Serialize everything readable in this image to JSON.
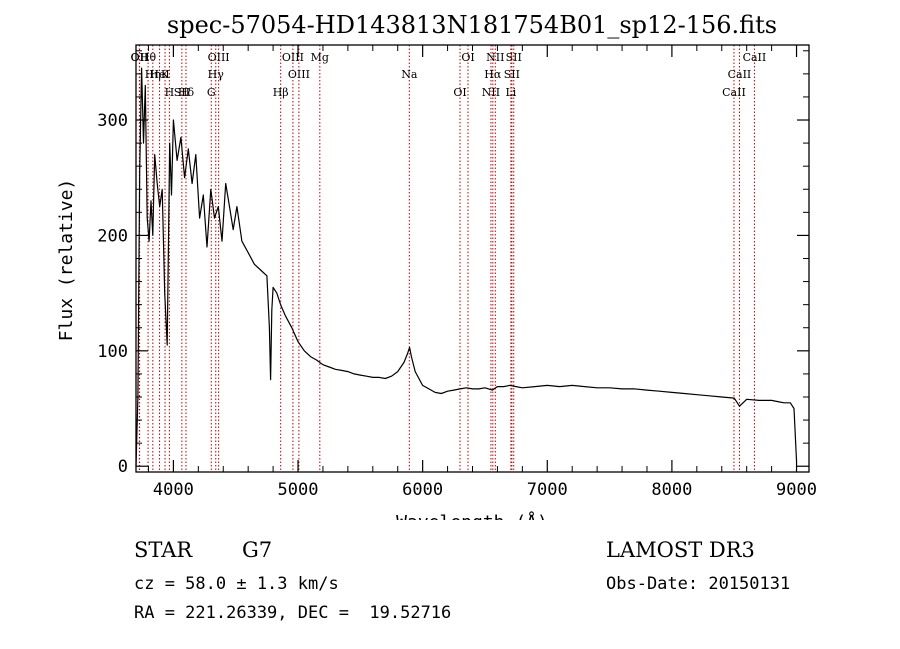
{
  "chart_data": {
    "type": "line",
    "title": "spec-57054-HD143813N181754B01_sp12-156.fits",
    "xlabel": "Wavelength (Å)",
    "ylabel": "Flux (relative)",
    "xlim": [
      3700,
      9100
    ],
    "ylim": [
      -5,
      365
    ],
    "xticks": [
      4000,
      5000,
      6000,
      7000,
      8000,
      9000
    ],
    "yticks": [
      0,
      100,
      200,
      300
    ],
    "series": [
      {
        "name": "flux",
        "x": [
          3700,
          3715,
          3730,
          3745,
          3760,
          3775,
          3790,
          3805,
          3820,
          3835,
          3850,
          3870,
          3890,
          3910,
          3930,
          3950,
          3970,
          3985,
          4000,
          4030,
          4060,
          4090,
          4120,
          4150,
          4180,
          4210,
          4240,
          4270,
          4300,
          4330,
          4360,
          4390,
          4420,
          4450,
          4480,
          4510,
          4550,
          4600,
          4650,
          4700,
          4750,
          4770,
          4780,
          4790,
          4800,
          4830,
          4860,
          4900,
          4950,
          5000,
          5050,
          5100,
          5150,
          5200,
          5250,
          5300,
          5350,
          5400,
          5450,
          5500,
          5550,
          5600,
          5650,
          5700,
          5750,
          5800,
          5850,
          5880,
          5895,
          5910,
          5940,
          6000,
          6050,
          6100,
          6150,
          6200,
          6250,
          6300,
          6350,
          6400,
          6450,
          6500,
          6560,
          6600,
          6650,
          6700,
          6750,
          6800,
          6900,
          7000,
          7100,
          7200,
          7300,
          7400,
          7500,
          7600,
          7700,
          7800,
          7900,
          8000,
          8100,
          8200,
          8300,
          8400,
          8500,
          8542,
          8600,
          8700,
          8800,
          8850,
          8900,
          8950,
          8980,
          9000
        ],
        "values": [
          0,
          60,
          255,
          345,
          280,
          330,
          215,
          195,
          230,
          200,
          270,
          245,
          225,
          240,
          150,
          105,
          280,
          235,
          300,
          265,
          285,
          250,
          275,
          245,
          270,
          215,
          235,
          190,
          240,
          215,
          225,
          195,
          245,
          225,
          205,
          225,
          195,
          185,
          175,
          170,
          165,
          120,
          75,
          135,
          155,
          150,
          140,
          130,
          120,
          108,
          100,
          95,
          92,
          88,
          86,
          84,
          83,
          82,
          80,
          79,
          78,
          77,
          77,
          76,
          78,
          82,
          90,
          98,
          103,
          95,
          82,
          70,
          67,
          64,
          63,
          65,
          66,
          67,
          68,
          67,
          67,
          68,
          66,
          69,
          69,
          70,
          69,
          68,
          69,
          70,
          69,
          70,
          69,
          68,
          68,
          67,
          67,
          66,
          65,
          64,
          63,
          62,
          61,
          60,
          59,
          52,
          58,
          57,
          57,
          56,
          55,
          55,
          50,
          5
        ]
      }
    ],
    "lines": [
      {
        "name": "Hθ",
        "w": 3797
      },
      {
        "name": "K",
        "w": 3933
      },
      {
        "name": "Hδ",
        "w": 4101
      },
      {
        "name": "OII",
        "w": 3727
      },
      {
        "name": "HeI",
        "w": 3889
      },
      {
        "name": "SII",
        "w": 4068
      },
      {
        "name": "OII",
        "w": 3729
      },
      {
        "name": "Hη",
        "w": 3835
      },
      {
        "name": "H",
        "w": 3968
      },
      {
        "name": "OIII",
        "w": 4363
      },
      {
        "name": "Hγ",
        "w": 4340
      },
      {
        "name": "G",
        "w": 4304
      },
      {
        "name": "OIII",
        "w": 4959
      },
      {
        "name": "OIII",
        "w": 5007
      },
      {
        "name": "Hβ",
        "w": 4861
      },
      {
        "name": "Mg",
        "w": 5175
      },
      {
        "name": "Na",
        "w": 5893
      },
      {
        "name": "OI",
        "w": 6300
      },
      {
        "name": "OI",
        "w": 6364
      },
      {
        "name": "Hα",
        "w": 6563
      },
      {
        "name": "NII",
        "w": 6548
      },
      {
        "name": "NII",
        "w": 6583
      },
      {
        "name": "SII",
        "w": 6716
      },
      {
        "name": "Li",
        "w": 6708
      },
      {
        "name": "SII",
        "w": 6731
      },
      {
        "name": "CaII",
        "w": 8542
      },
      {
        "name": "CaII",
        "w": 8498
      },
      {
        "name": "CaII",
        "w": 8662
      }
    ]
  },
  "info": {
    "object_class": "STAR",
    "subclass": "G7",
    "cz": "cz = 58.0 ± 1.3 km/s",
    "coords": "RA = 221.26339, DEC =  19.52716",
    "survey": "LAMOST DR3",
    "obs_date": "Obs-Date: 20150131"
  }
}
